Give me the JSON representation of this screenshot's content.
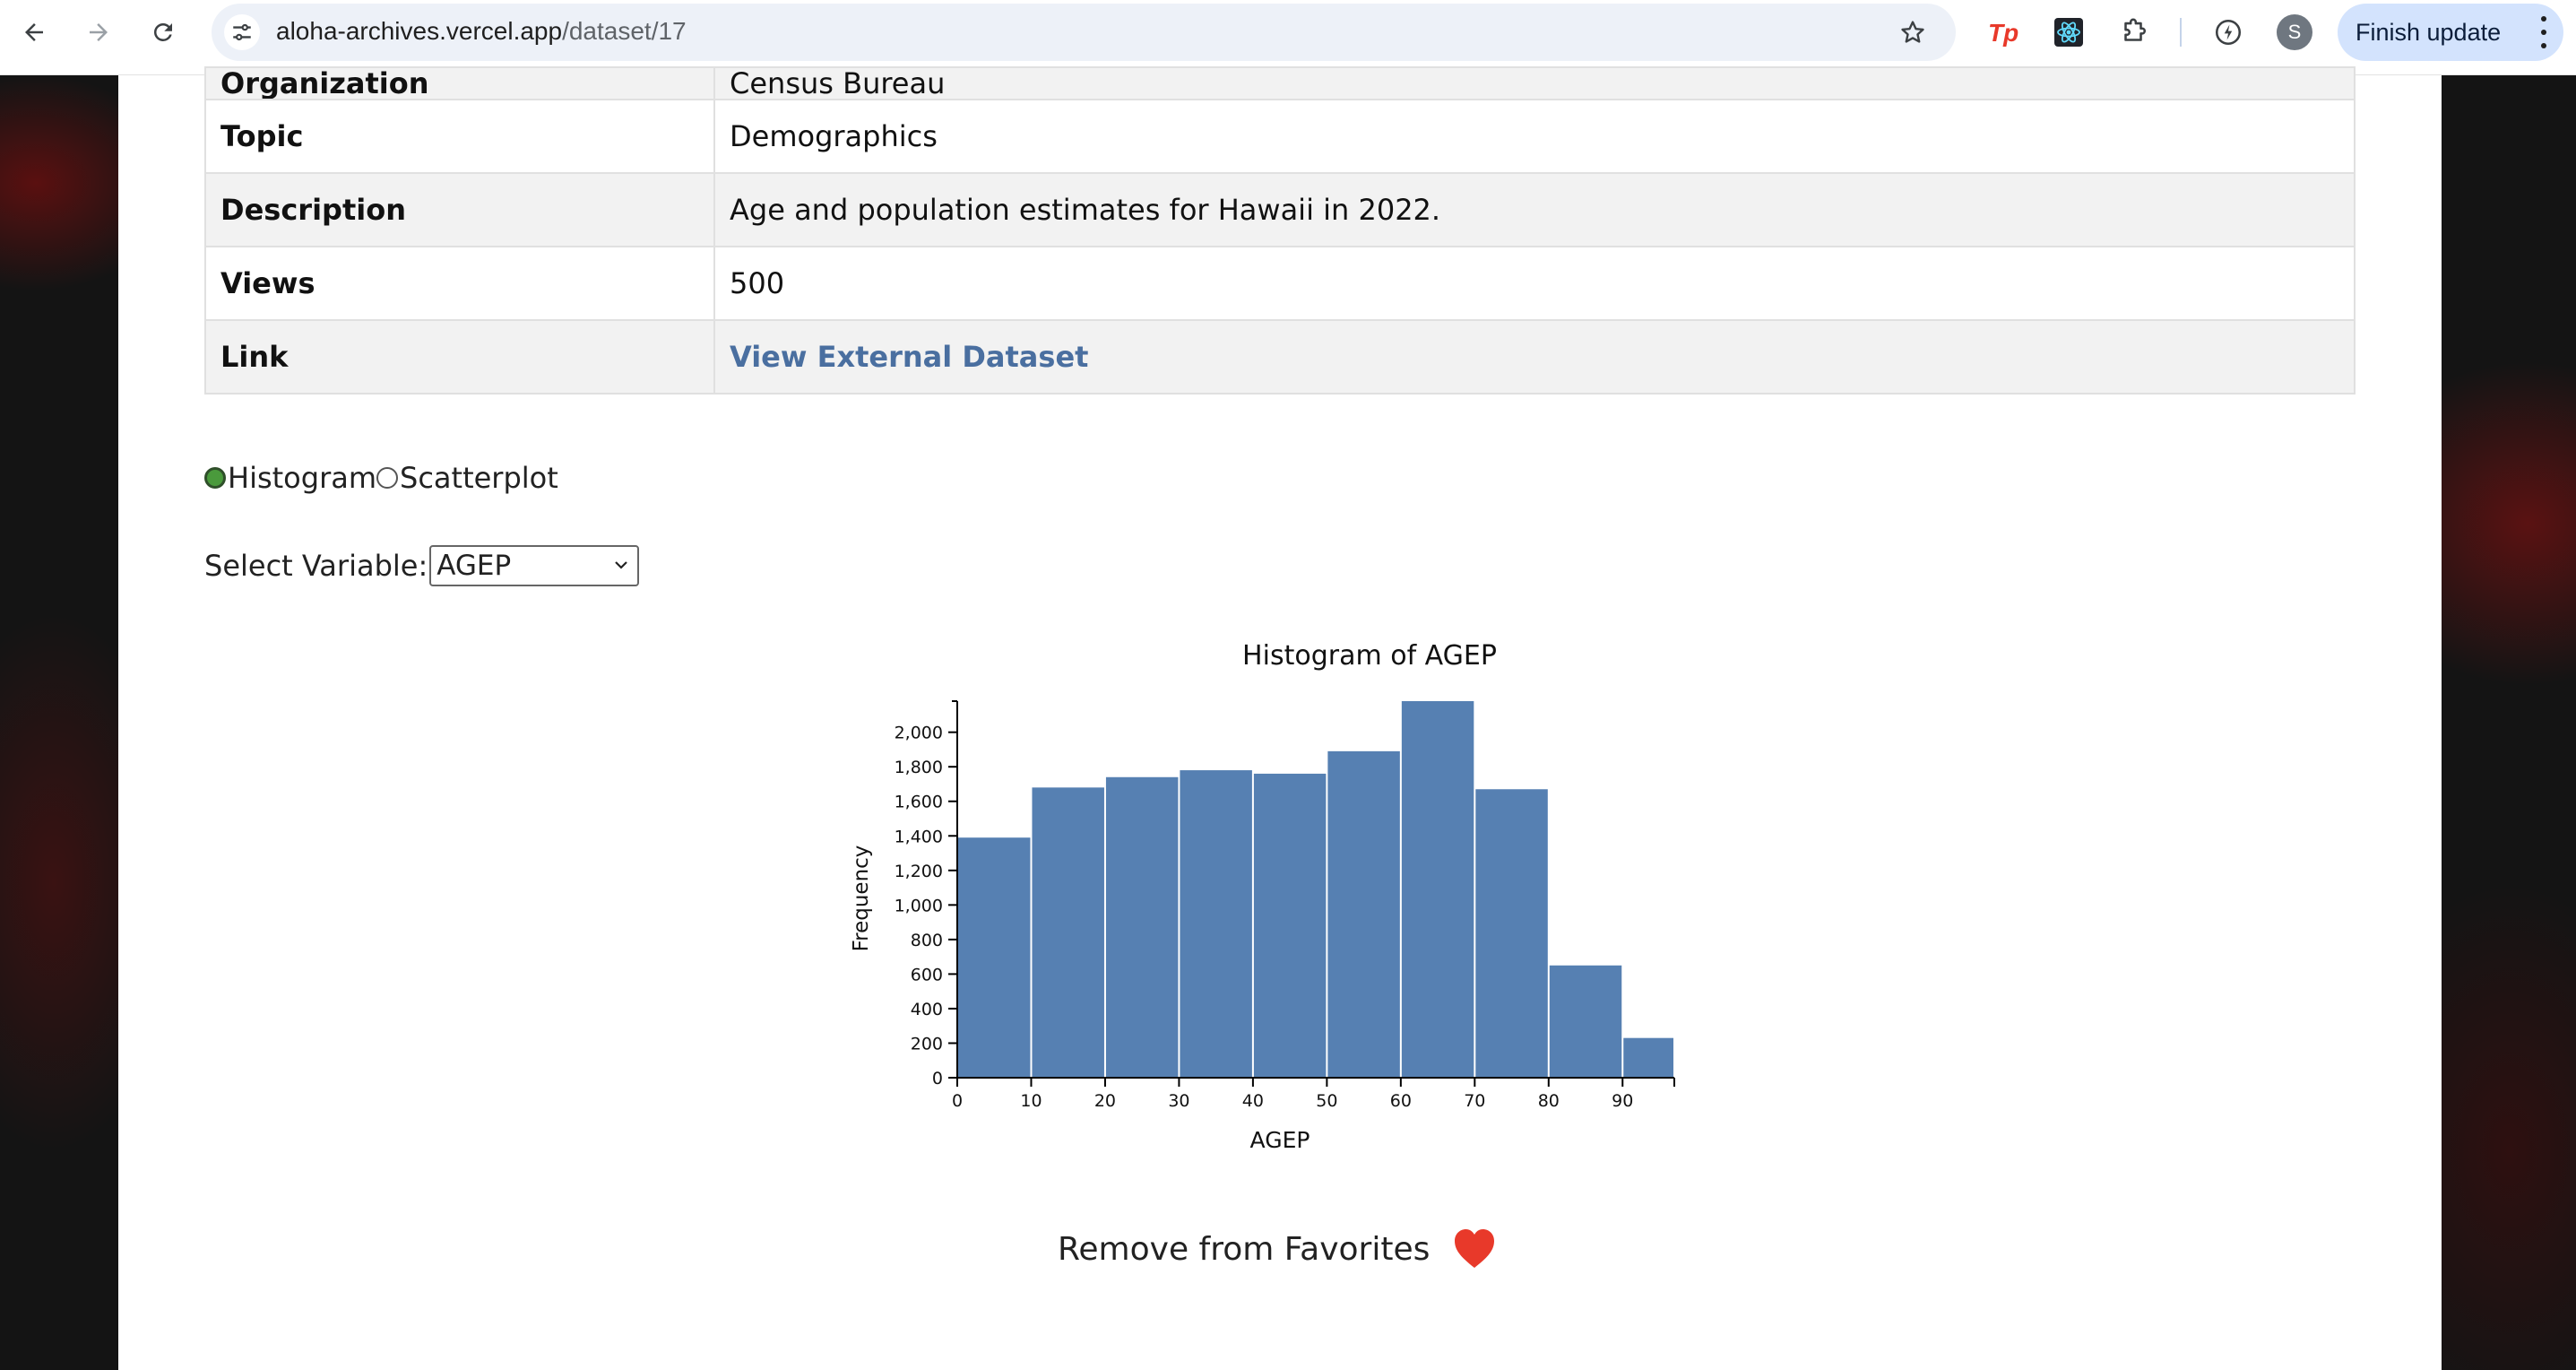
{
  "browser": {
    "url_domain": "aloha-archives.vercel.app",
    "url_path": "/dataset/17",
    "finish_update_label": "Finish update",
    "avatar_letter": "S",
    "extensions": [
      "tp-extension-icon",
      "react-devtools-icon",
      "puzzle-extensions-icon",
      "performance-icon"
    ]
  },
  "dataset": {
    "rows": [
      {
        "key": "Organization",
        "value": "Census Bureau"
      },
      {
        "key": "Topic",
        "value": "Demographics"
      },
      {
        "key": "Description",
        "value": "Age and population estimates for Hawaii in 2022."
      },
      {
        "key": "Views",
        "value": "500"
      },
      {
        "key": "Link",
        "value": "View External Dataset"
      }
    ]
  },
  "controls": {
    "chart_types": [
      "Histogram",
      "Scatterplot"
    ],
    "selected_chart_type": "Histogram",
    "select_label": "Select Variable:",
    "selected_variable": "AGEP"
  },
  "chart_data": {
    "type": "bar",
    "title": "Histogram of AGEP",
    "xlabel": "AGEP",
    "ylabel": "Frequency",
    "bins": [
      [
        0,
        10
      ],
      [
        10,
        20
      ],
      [
        20,
        30
      ],
      [
        30,
        40
      ],
      [
        40,
        50
      ],
      [
        50,
        60
      ],
      [
        60,
        70
      ],
      [
        70,
        80
      ],
      [
        80,
        90
      ],
      [
        90,
        97
      ]
    ],
    "values": [
      1390,
      1680,
      1740,
      1780,
      1760,
      1890,
      2180,
      1670,
      650,
      230
    ],
    "xlim": [
      0,
      97
    ],
    "ylim": [
      0,
      2180
    ],
    "xticks": [
      "0",
      "10",
      "20",
      "30",
      "40",
      "50",
      "60",
      "70",
      "80",
      "90"
    ],
    "yticks": [
      "0",
      "200",
      "400",
      "600",
      "800",
      "1,000",
      "1,200",
      "1,400",
      "1,600",
      "1,800",
      "2,000"
    ],
    "bar_color": "#5680b2"
  },
  "favorites": {
    "label": "Remove from Favorites",
    "heart_color": "#e8392a"
  }
}
